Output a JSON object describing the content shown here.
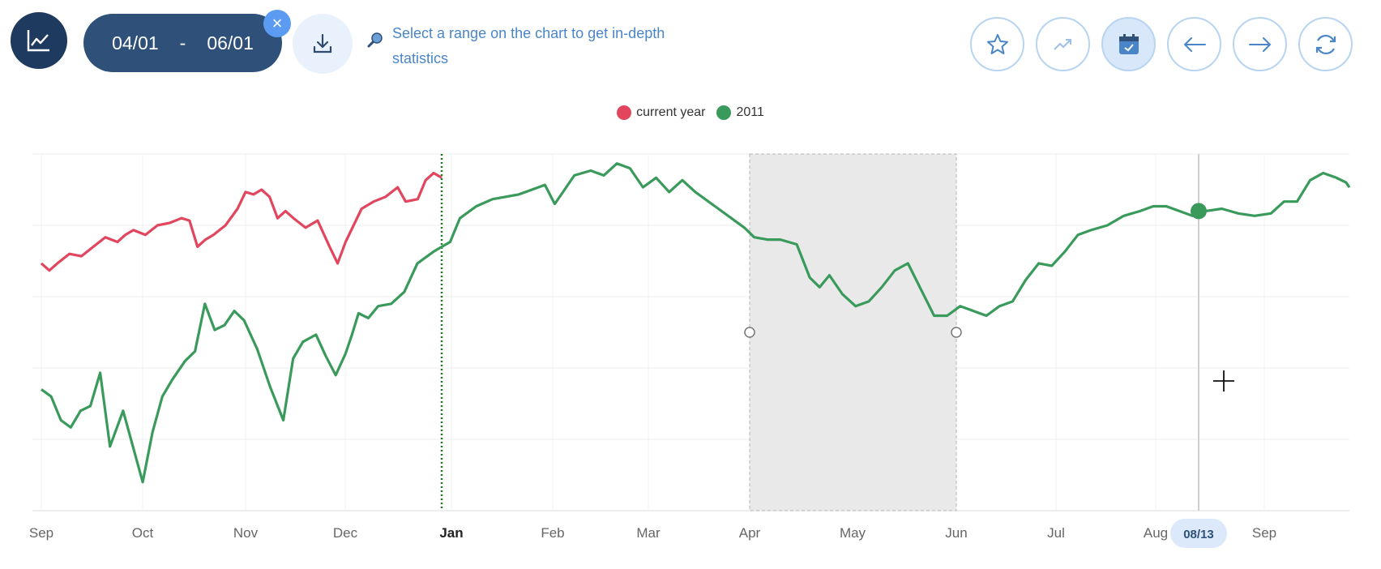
{
  "header": {
    "range_start": "04/01",
    "range_sep": "-",
    "range_end": "06/01",
    "clear_label": "×",
    "hint": "Select a range on the chart to get in-depth statistics"
  },
  "toolbar": {
    "icons": [
      "star-icon",
      "trend-icon",
      "calendar-icon",
      "arrow-left-icon",
      "arrow-right-icon",
      "refresh-icon"
    ]
  },
  "colors": {
    "current_year": "#e2465e",
    "year_2011": "#3a9a5c",
    "selection": "#e9e9e9",
    "accent": "#2e5079"
  },
  "chart_data": {
    "type": "line",
    "x_tick_labels": [
      "Sep",
      "Oct",
      "Nov",
      "Dec",
      "Jan",
      "Feb",
      "Mar",
      "Apr",
      "May",
      "Jun",
      "Jul",
      "Aug",
      "Sep"
    ],
    "hover_label": "08/13",
    "selection": {
      "start": "Apr",
      "end": "Jun"
    },
    "year_divider": "Jan",
    "grid": true,
    "legend_position": "top-center",
    "series": [
      {
        "name": "current year",
        "color": "#e2465e",
        "points": [
          [
            0,
            44
          ],
          [
            0.1,
            41
          ],
          [
            0.2,
            44
          ],
          [
            0.35,
            48
          ],
          [
            0.5,
            47
          ],
          [
            0.65,
            51
          ],
          [
            0.8,
            55
          ],
          [
            0.95,
            53
          ],
          [
            1.05,
            56
          ],
          [
            1.15,
            58
          ],
          [
            1.3,
            56
          ],
          [
            1.45,
            60
          ],
          [
            1.6,
            61
          ],
          [
            1.75,
            63
          ],
          [
            1.85,
            62
          ],
          [
            1.95,
            51
          ],
          [
            2.05,
            54
          ],
          [
            2.15,
            56
          ],
          [
            2.3,
            60
          ],
          [
            2.45,
            67
          ],
          [
            2.55,
            74
          ],
          [
            2.65,
            73
          ],
          [
            2.75,
            75
          ],
          [
            2.85,
            72
          ],
          [
            2.95,
            63
          ],
          [
            3.05,
            66
          ],
          [
            3.15,
            63
          ],
          [
            3.3,
            59
          ],
          [
            3.45,
            62
          ],
          [
            3.6,
            51
          ],
          [
            3.7,
            44
          ],
          [
            3.8,
            53
          ],
          [
            3.9,
            60
          ],
          [
            4.0,
            67
          ],
          [
            4.15,
            70
          ],
          [
            4.3,
            72
          ],
          [
            4.45,
            76
          ],
          [
            4.55,
            70
          ],
          [
            4.7,
            71
          ],
          [
            4.8,
            79
          ],
          [
            4.9,
            82
          ],
          [
            5.0,
            80
          ]
        ]
      },
      {
        "name": "2011",
        "color": "#3a9a5c",
        "points": [
          [
            0,
            -9
          ],
          [
            0.15,
            -12
          ],
          [
            0.3,
            -22
          ],
          [
            0.45,
            -25
          ],
          [
            0.6,
            -18
          ],
          [
            0.75,
            -16
          ],
          [
            0.9,
            -2
          ],
          [
            1.05,
            -33
          ],
          [
            1.25,
            -18
          ],
          [
            1.4,
            -33
          ],
          [
            1.55,
            -48
          ],
          [
            1.7,
            -27
          ],
          [
            1.85,
            -12
          ],
          [
            2.0,
            -5
          ],
          [
            2.2,
            3
          ],
          [
            2.35,
            7
          ],
          [
            2.5,
            27
          ],
          [
            2.65,
            16
          ],
          [
            2.8,
            18
          ],
          [
            2.95,
            24
          ],
          [
            3.1,
            20
          ],
          [
            3.3,
            8
          ],
          [
            3.5,
            -8
          ],
          [
            3.7,
            -22
          ],
          [
            3.85,
            4
          ],
          [
            4.0,
            11
          ],
          [
            4.2,
            14
          ],
          [
            4.35,
            5
          ],
          [
            4.5,
            -3
          ],
          [
            4.65,
            6
          ],
          [
            4.75,
            14
          ],
          [
            4.85,
            23
          ],
          [
            5.0,
            21
          ],
          [
            5.15,
            26
          ],
          [
            5.35,
            27
          ],
          [
            5.55,
            32
          ],
          [
            5.75,
            44
          ],
          [
            6.0,
            49
          ],
          [
            6.25,
            53
          ],
          [
            6.4,
            63
          ],
          [
            6.65,
            68
          ],
          [
            6.9,
            71
          ],
          [
            7.1,
            72
          ],
          [
            7.3,
            73
          ],
          [
            7.5,
            75
          ],
          [
            7.7,
            77
          ],
          [
            7.85,
            69
          ],
          [
            7.95,
            73
          ],
          [
            8.15,
            81
          ],
          [
            8.4,
            83
          ],
          [
            8.6,
            81
          ],
          [
            8.8,
            86
          ],
          [
            9.0,
            84
          ],
          [
            9.2,
            76
          ],
          [
            9.4,
            80
          ],
          [
            9.6,
            74
          ],
          [
            9.8,
            79
          ],
          [
            10.0,
            74
          ],
          [
            10.3,
            68
          ],
          [
            10.55,
            63
          ],
          [
            10.75,
            59
          ],
          [
            10.9,
            55
          ],
          [
            11.1,
            54
          ],
          [
            11.3,
            54
          ],
          [
            11.55,
            52
          ],
          [
            11.75,
            38
          ],
          [
            11.9,
            34
          ],
          [
            12.05,
            39
          ],
          [
            12.25,
            31
          ],
          [
            12.45,
            26
          ],
          [
            12.65,
            28
          ],
          [
            12.85,
            34
          ],
          [
            13.05,
            41
          ],
          [
            13.25,
            44
          ],
          [
            13.45,
            33
          ],
          [
            13.65,
            22
          ],
          [
            13.85,
            22
          ],
          [
            14.05,
            26
          ],
          [
            14.25,
            24
          ],
          [
            14.45,
            22
          ],
          [
            14.65,
            26
          ],
          [
            14.85,
            28
          ],
          [
            15.05,
            37
          ],
          [
            15.25,
            44
          ],
          [
            15.45,
            43
          ],
          [
            15.65,
            49
          ],
          [
            15.85,
            56
          ],
          [
            16.05,
            58
          ],
          [
            16.3,
            60
          ],
          [
            16.55,
            64
          ],
          [
            16.8,
            66
          ],
          [
            17.0,
            68
          ],
          [
            17.2,
            68
          ],
          [
            17.4,
            66
          ],
          [
            17.6,
            64
          ],
          [
            17.8,
            66
          ],
          [
            18.05,
            67
          ],
          [
            18.3,
            65
          ],
          [
            18.55,
            64
          ],
          [
            18.8,
            65
          ],
          [
            19.0,
            70
          ],
          [
            19.2,
            70
          ],
          [
            19.4,
            79
          ],
          [
            19.6,
            82
          ],
          [
            19.8,
            80
          ],
          [
            19.95,
            78
          ],
          [
            20.0,
            76
          ]
        ]
      }
    ]
  }
}
